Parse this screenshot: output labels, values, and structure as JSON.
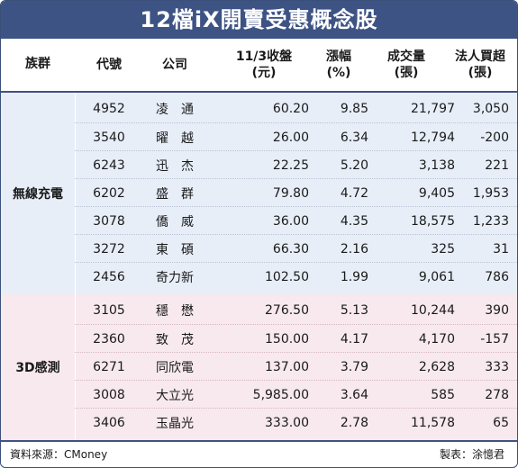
{
  "title": "12檔iX開賣受惠概念股",
  "headers": {
    "group": "族群",
    "code": "代號",
    "company": "公司",
    "price_l1": "11/3收盤",
    "price_l2": "(元)",
    "pct_l1": "漲幅",
    "pct_l2": "(%)",
    "vol_l1": "成交量",
    "vol_l2": "(張)",
    "inst_l1": "法人買超",
    "inst_l2": "(張)"
  },
  "groups": [
    {
      "name": "無線充電",
      "rows": [
        {
          "code": "4952",
          "company": "凌　通",
          "price": "60.20",
          "pct": "9.85",
          "volume": "21,797",
          "inst": "3,050"
        },
        {
          "code": "3540",
          "company": "曜　越",
          "price": "26.00",
          "pct": "6.34",
          "volume": "12,794",
          "inst": "-200"
        },
        {
          "code": "6243",
          "company": "迅　杰",
          "price": "22.25",
          "pct": "5.20",
          "volume": "3,138",
          "inst": "221"
        },
        {
          "code": "6202",
          "company": "盛　群",
          "price": "79.80",
          "pct": "4.72",
          "volume": "9,405",
          "inst": "1,953"
        },
        {
          "code": "3078",
          "company": "僑　威",
          "price": "36.00",
          "pct": "4.35",
          "volume": "18,575",
          "inst": "1,233"
        },
        {
          "code": "3272",
          "company": "東　碩",
          "price": "66.30",
          "pct": "2.16",
          "volume": "325",
          "inst": "31"
        },
        {
          "code": "2456",
          "company": "奇力新",
          "price": "102.50",
          "pct": "1.99",
          "volume": "9,061",
          "inst": "786"
        }
      ]
    },
    {
      "name": "3D感測",
      "rows": [
        {
          "code": "3105",
          "company": "穩　懋",
          "price": "276.50",
          "pct": "5.13",
          "volume": "10,244",
          "inst": "390"
        },
        {
          "code": "2360",
          "company": "致　茂",
          "price": "150.00",
          "pct": "4.17",
          "volume": "4,170",
          "inst": "-157"
        },
        {
          "code": "6271",
          "company": "同欣電",
          "price": "137.00",
          "pct": "3.79",
          "volume": "2,628",
          "inst": "333"
        },
        {
          "code": "3008",
          "company": "大立光",
          "price": "5,985.00",
          "pct": "3.64",
          "volume": "585",
          "inst": "278"
        },
        {
          "code": "3406",
          "company": "玉晶光",
          "price": "333.00",
          "pct": "2.78",
          "volume": "11,578",
          "inst": "65"
        }
      ]
    }
  ],
  "footer": {
    "source": "資料來源：CMoney",
    "maker": "製表：涂憶君"
  },
  "colors": {
    "title_bg": "#3d5384",
    "group1_bg": "#e7eef8",
    "group2_bg": "#f7e9ed"
  }
}
